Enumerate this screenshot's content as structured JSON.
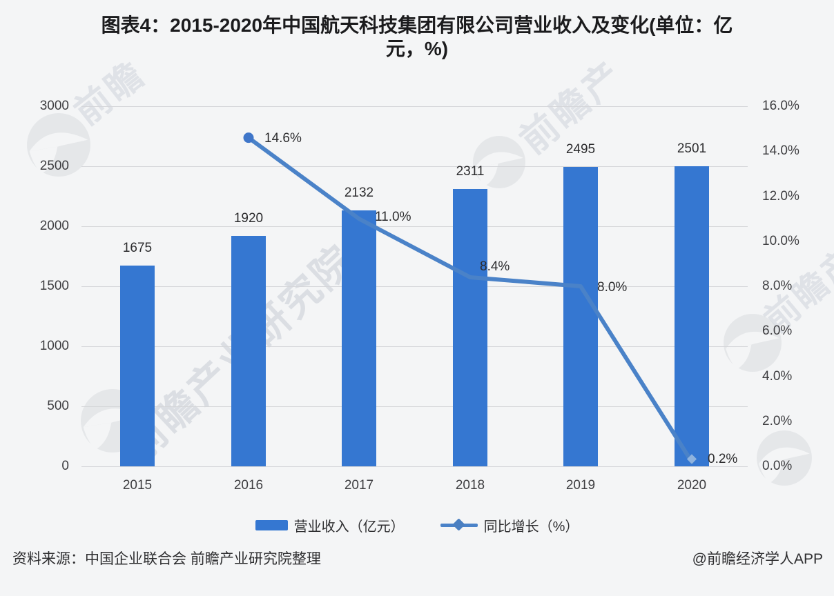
{
  "title": {
    "line1": "图表4：2015-2020年中国航天科技集团有限公司营业收入及变化(单位：亿",
    "line2": "元，%)"
  },
  "chart_data": {
    "type": "bar",
    "subtype": "combo-bar-line-dual-axis",
    "categories": [
      "2015",
      "2016",
      "2017",
      "2018",
      "2019",
      "2020"
    ],
    "series": [
      {
        "name": "营业收入（亿元）",
        "type": "bar",
        "values": [
          1675,
          1920,
          2132,
          2311,
          2495,
          2501
        ],
        "data_labels": [
          "1675",
          "1920",
          "2132",
          "2311",
          "2495",
          "2501"
        ]
      },
      {
        "name": "同比增长（%）",
        "type": "line",
        "values": [
          null,
          14.6,
          11.0,
          8.4,
          8.0,
          0.2
        ],
        "data_labels": [
          "",
          "14.6%",
          "11.0%",
          "8.4%",
          "8.0%",
          "0.2%"
        ]
      }
    ],
    "left_axis": {
      "min": 0,
      "max": 3000,
      "tick_labels": [
        "0",
        "500",
        "1000",
        "1500",
        "2000",
        "2500",
        "3000"
      ]
    },
    "right_axis": {
      "min": 0,
      "max": 16,
      "tick_labels": [
        "0.0%",
        "2.0%",
        "4.0%",
        "6.0%",
        "8.0%",
        "10.0%",
        "12.0%",
        "14.0%",
        "16.0%"
      ]
    },
    "grid": true,
    "legend_position": "bottom",
    "legend": [
      {
        "label": "营业收入（亿元）"
      },
      {
        "label": "同比增长（%）"
      }
    ],
    "colors": {
      "bar": "#3577d1",
      "line": "#4a82c8",
      "marker": "#3f76c9",
      "end_marker": "#8fb3de",
      "gridline": "#d5d6d9",
      "background": "#f4f5f6"
    }
  },
  "footer": {
    "source": "资料来源：中国企业联合会 前瞻产业研究院整理",
    "credit": "@前瞻经济学人APP"
  },
  "watermarks": {
    "main": "前瞻产业研究院",
    "brand": "前瞻",
    "brand_short": "前瞻产"
  }
}
